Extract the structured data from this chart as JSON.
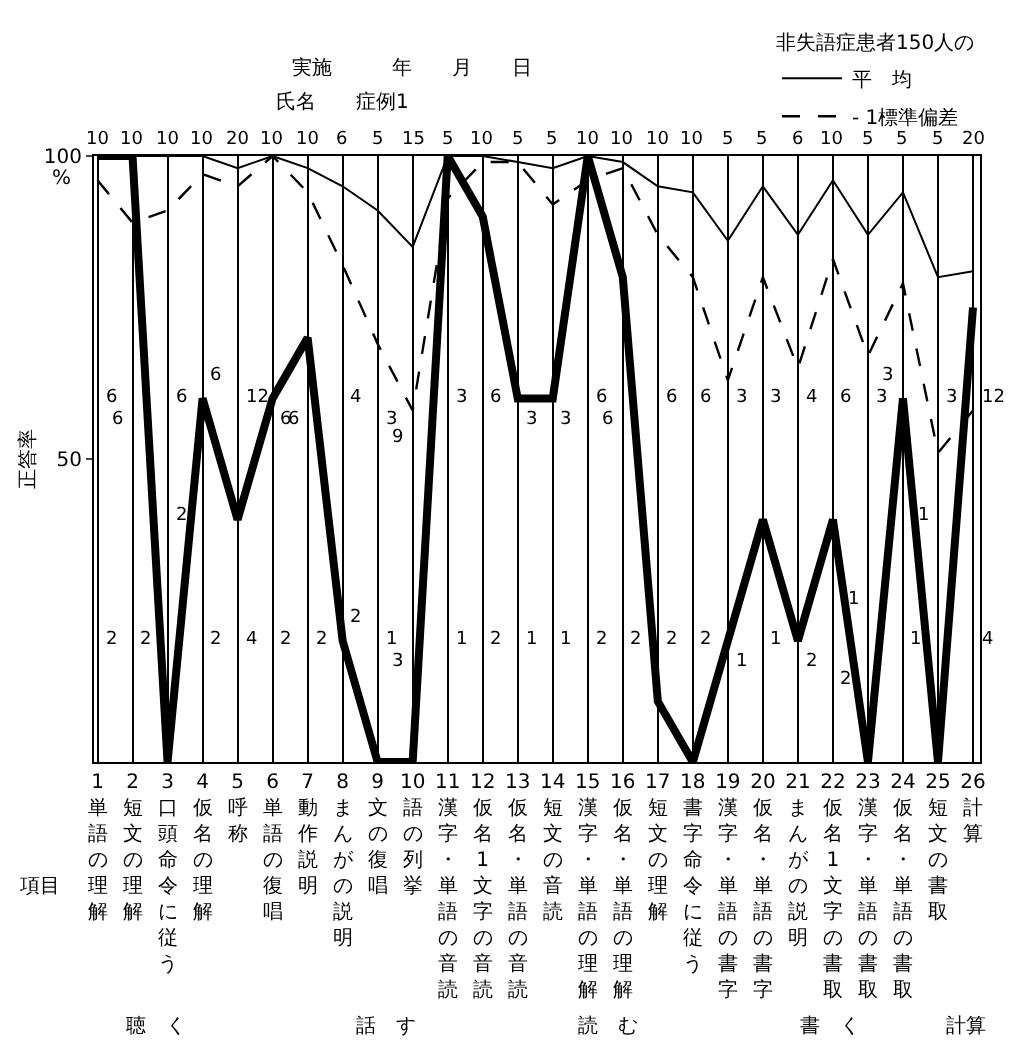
{
  "chart_data": {
    "type": "line",
    "ylabel": "正答率",
    "legend_title": "非失語症患者150人の",
    "categories": [
      "1 単語の理解",
      "2 短文の理解",
      "3 口頭命令に従う",
      "4 仮名の理解",
      "5 呼称",
      "6 単語の復唱",
      "7 動作説明",
      "8 まんがの説明",
      "9 文の復唱",
      "10 語の列挙",
      "11 漢字・単語の音読",
      "12 仮名1文字の音読",
      "13 仮名・単語の音読",
      "14 短文の音読",
      "15 漢字・単語の理解",
      "16 仮名・単語の理解",
      "17 短文の理解",
      "18 書字命令に従う",
      "19 漢字・単語の書字",
      "20 仮名・単語の書字",
      "21 まんがの説明",
      "22 仮名1文字の書取",
      "23 漢字・単語の書取",
      "24 仮名・単語の書取",
      "25 短文の書取",
      "26 計算"
    ],
    "series": [
      {
        "color": "#000000",
        "values": [
          100,
          100,
          0,
          60,
          40,
          60,
          70,
          20,
          0,
          0,
          100,
          90,
          60,
          60,
          100,
          80,
          10,
          0,
          20,
          40,
          20,
          40,
          0,
          60,
          0,
          75
        ]
      },
      {
        "name": "平　均",
        "color": "#000000",
        "values": [
          100,
          100,
          100,
          100,
          98,
          100,
          98,
          95,
          91,
          85,
          100,
          100,
          99,
          98,
          100,
          99,
          95,
          94,
          86,
          95,
          87,
          96,
          87,
          94,
          80,
          81
        ]
      },
      {
        "name": "- 1標準偏差",
        "color": "#000000",
        "line_style": "dashed",
        "values": [
          96,
          89,
          91,
          97,
          95,
          100,
          94,
          82,
          69,
          58,
          93,
          99,
          99,
          92,
          96,
          98,
          87,
          80,
          63,
          80,
          65,
          83,
          67,
          79,
          51,
          58
        ]
      }
    ],
    "ylim": [
      0,
      100
    ],
    "yticks": [
      50,
      100
    ],
    "grid": "x",
    "legend": "top right",
    "marker": "none",
    "annotations": [
      "実施　　　年　　月　　日",
      "氏名　　症例1",
      "%",
      "項目",
      "聴　く",
      "話　す",
      "読　む",
      "書　く",
      "計算",
      "10",
      "10",
      "10",
      "10",
      "20",
      "10",
      "10",
      "6",
      "5",
      "15",
      "5",
      "10",
      "5",
      "5",
      "10",
      "10",
      "10",
      "10",
      "5",
      "5",
      "6",
      "10",
      "5",
      "5",
      "5",
      "20",
      "6",
      "6",
      "6",
      "6",
      "12",
      "6",
      "6",
      "4",
      "3",
      "9",
      "3",
      "6",
      "3",
      "3",
      "6",
      "6",
      "6",
      "6",
      "3",
      "3",
      "4",
      "6",
      "3",
      "3",
      "3",
      "12",
      "2",
      "2",
      "2",
      "2",
      "4",
      "2",
      "2",
      "2",
      "1",
      "3",
      "1",
      "2",
      "1",
      "1",
      "2",
      "2",
      "2",
      "2",
      "1",
      "1",
      "2",
      "2",
      "1",
      "1",
      "1",
      "4"
    ]
  }
}
